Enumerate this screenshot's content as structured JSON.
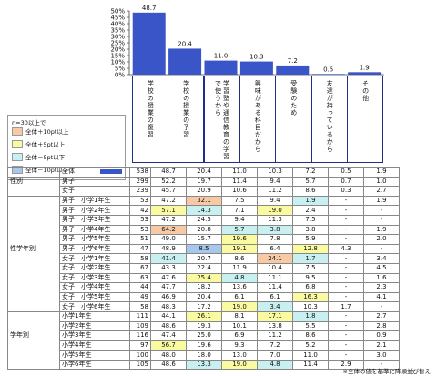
{
  "chart_data": {
    "type": "bar",
    "categories": [
      "学校の授業の復習",
      "学校の授業の予習",
      "学習塾や通信教育の学習で使うから",
      "興味がある科目だから",
      "受験のため",
      "友達が持っているから",
      "その他"
    ],
    "values": [
      48.7,
      20.4,
      11.0,
      10.3,
      7.2,
      0.5,
      1.9
    ],
    "ylim": [
      0,
      50
    ],
    "yticks": [
      "0%",
      "5%",
      "10%",
      "15%",
      "20%",
      "25%",
      "30%",
      "35%",
      "40%",
      "45%",
      "50%"
    ],
    "bar_color": "#3a55c8",
    "grid": false
  },
  "legend": {
    "title": "n=30以上で",
    "items": [
      {
        "label": "全体＋10pt以上",
        "color": "#f7c9a4"
      },
      {
        "label": "全体＋5pt以上",
        "color": "#fafaa0"
      },
      {
        "label": "全体－5pt以下",
        "color": "#c8f0f0"
      },
      {
        "label": "全体－10pt以下",
        "color": "#a7c7ec"
      }
    ]
  },
  "table": {
    "total": {
      "label": "全体",
      "n": "538",
      "values": [
        "48.7",
        "20.4",
        "11.0",
        "10.3",
        "7.2",
        "0.5",
        "1.9"
      ]
    },
    "groups": [
      {
        "name": "性別",
        "rows": [
          {
            "label": "男子",
            "n": "299",
            "values": [
              "52.2",
              "19.7",
              "11.4",
              "9.4",
              "5.7",
              "0.7",
              "1.0"
            ],
            "hl": [
              "",
              "",
              "",
              "",
              "",
              "",
              ""
            ]
          },
          {
            "label": "女子",
            "n": "239",
            "values": [
              "45.7",
              "20.9",
              "10.6",
              "11.2",
              "8.6",
              "0.3",
              "2.7"
            ],
            "hl": [
              "",
              "",
              "",
              "",
              "",
              "",
              ""
            ]
          }
        ]
      },
      {
        "name": "性学年別",
        "rows": [
          {
            "label": "男子　小学1年生",
            "n": "53",
            "values": [
              "47.2",
              "32.1",
              "7.5",
              "9.4",
              "1.9",
              "-",
              "1.9"
            ],
            "hl": [
              "",
              "o",
              "",
              "",
              "c",
              "",
              ""
            ]
          },
          {
            "label": "男子　小学2年生",
            "n": "42",
            "values": [
              "57.1",
              "14.3",
              "7.1",
              "19.0",
              "2.4",
              "-",
              "-"
            ],
            "hl": [
              "y",
              "c",
              "",
              "y",
              "",
              "",
              ""
            ]
          },
          {
            "label": "男子　小学3年生",
            "n": "53",
            "values": [
              "47.2",
              "24.5",
              "9.4",
              "11.3",
              "7.5",
              "-",
              "-"
            ],
            "hl": [
              "",
              "",
              "",
              "",
              "",
              "",
              ""
            ]
          },
          {
            "label": "男子　小学4年生",
            "n": "53",
            "values": [
              "64.2",
              "20.8",
              "5.7",
              "3.8",
              "3.8",
              "-",
              "1.9"
            ],
            "hl": [
              "o",
              "",
              "c",
              "c",
              "",
              "",
              ""
            ]
          },
          {
            "label": "男子　小学5年生",
            "n": "51",
            "values": [
              "49.0",
              "15.7",
              "19.6",
              "7.8",
              "5.9",
              "-",
              "2.0"
            ],
            "hl": [
              "",
              "",
              "y",
              "",
              "",
              "",
              ""
            ]
          },
          {
            "label": "男子　小学6年生",
            "n": "47",
            "values": [
              "48.9",
              "8.5",
              "19.1",
              "6.4",
              "12.8",
              "4.3",
              "-"
            ],
            "hl": [
              "",
              "b",
              "y",
              "",
              "y",
              "",
              ""
            ]
          },
          {
            "label": "女子　小学1年生",
            "n": "58",
            "values": [
              "41.4",
              "20.7",
              "8.6",
              "24.1",
              "1.7",
              "-",
              "3.4"
            ],
            "hl": [
              "c",
              "",
              "",
              "o",
              "c",
              "",
              ""
            ]
          },
          {
            "label": "女子　小学2年生",
            "n": "67",
            "values": [
              "43.3",
              "22.4",
              "11.9",
              "10.4",
              "7.5",
              "-",
              "4.5"
            ],
            "hl": [
              "",
              "",
              "",
              "",
              "",
              "",
              ""
            ]
          },
          {
            "label": "女子　小学3年生",
            "n": "63",
            "values": [
              "47.6",
              "25.4",
              "4.8",
              "11.1",
              "9.5",
              "-",
              "1.6"
            ],
            "hl": [
              "",
              "y",
              "c",
              "",
              "",
              "",
              ""
            ]
          },
          {
            "label": "女子　小学4年生",
            "n": "44",
            "values": [
              "47.7",
              "18.2",
              "13.6",
              "11.4",
              "6.8",
              "-",
              "2.3"
            ],
            "hl": [
              "",
              "",
              "",
              "",
              "",
              "",
              ""
            ]
          },
          {
            "label": "女子　小学5年生",
            "n": "49",
            "values": [
              "46.9",
              "20.4",
              "6.1",
              "6.1",
              "16.3",
              "-",
              "4.1"
            ],
            "hl": [
              "",
              "",
              "",
              "",
              "y",
              "",
              ""
            ]
          },
          {
            "label": "女子　小学6年生",
            "n": "58",
            "values": [
              "48.3",
              "17.2",
              "19.0",
              "3.4",
              "10.3",
              "1.7",
              "-"
            ],
            "hl": [
              "",
              "",
              "y",
              "c",
              "",
              "",
              ""
            ]
          }
        ]
      },
      {
        "name": "学年別",
        "rows": [
          {
            "label": "小学1年生",
            "n": "111",
            "values": [
              "44.1",
              "26.1",
              "8.1",
              "17.1",
              "1.8",
              "-",
              "2.7"
            ],
            "hl": [
              "",
              "y",
              "",
              "y",
              "c",
              "",
              ""
            ]
          },
          {
            "label": "小学2年生",
            "n": "109",
            "values": [
              "48.6",
              "19.3",
              "10.1",
              "13.8",
              "5.5",
              "-",
              "2.8"
            ],
            "hl": [
              "",
              "",
              "",
              "",
              "",
              "",
              ""
            ]
          },
          {
            "label": "小学3年生",
            "n": "116",
            "values": [
              "47.4",
              "25.0",
              "6.9",
              "11.2",
              "8.6",
              "-",
              "0.9"
            ],
            "hl": [
              "",
              "",
              "",
              "",
              "",
              "",
              ""
            ]
          },
          {
            "label": "小学4年生",
            "n": "97",
            "values": [
              "56.7",
              "19.6",
              "9.3",
              "7.2",
              "5.2",
              "-",
              "2.1"
            ],
            "hl": [
              "y",
              "",
              "",
              "",
              "",
              "",
              ""
            ]
          },
          {
            "label": "小学5年生",
            "n": "100",
            "values": [
              "48.0",
              "18.0",
              "13.0",
              "7.0",
              "11.0",
              "-",
              "3.0"
            ],
            "hl": [
              "",
              "",
              "",
              "",
              "",
              "",
              ""
            ]
          },
          {
            "label": "小学6年生",
            "n": "105",
            "values": [
              "48.6",
              "13.3",
              "19.0",
              "4.8",
              "11.4",
              "2.9",
              "-"
            ],
            "hl": [
              "",
              "c",
              "y",
              "c",
              "",
              "",
              ""
            ]
          }
        ]
      }
    ]
  },
  "footnote": "※全体の値を基準に降順並び替え"
}
